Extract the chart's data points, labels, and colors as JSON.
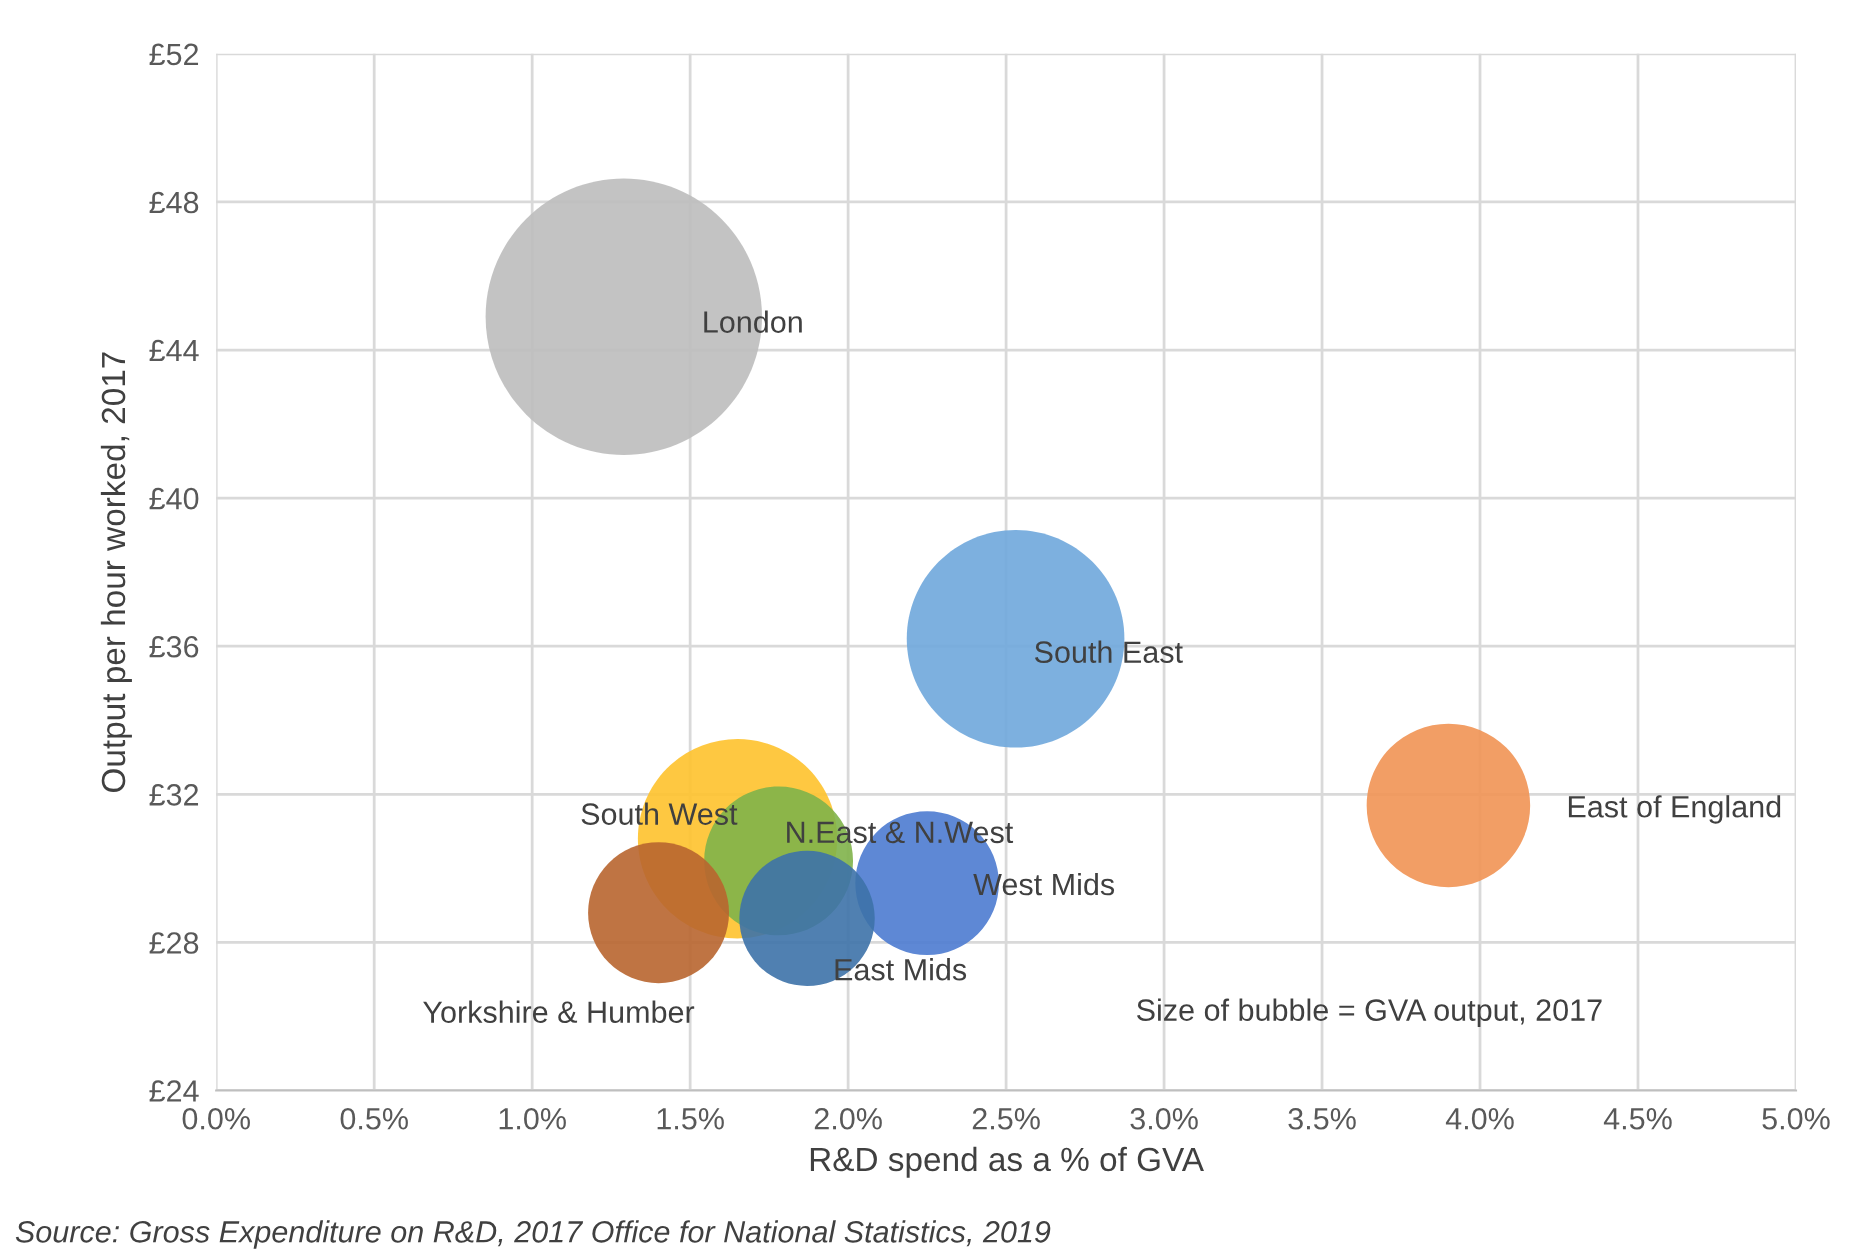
{
  "chart_data": {
    "type": "bubble",
    "xlabel": "R&D spend as a % of GVA",
    "ylabel": "Output per hour worked, 2017",
    "annotations": [
      "Size of bubble = GVA output, 2017",
      "Source: Gross Expenditure on R&D, 2017 Office for National Statistics, 2019"
    ],
    "xlim": [
      0,
      5
    ],
    "xticks": [
      {
        "value": 0,
        "label": "0.0%"
      },
      {
        "value": 0.5,
        "label": "0.5%"
      },
      {
        "value": 1,
        "label": "1.0%"
      },
      {
        "value": 1.5,
        "label": "1.5%"
      },
      {
        "value": 2,
        "label": "2.0%"
      },
      {
        "value": 2.5,
        "label": "2.5%"
      },
      {
        "value": 3,
        "label": "3.0%"
      },
      {
        "value": 3.5,
        "label": "3.5%"
      },
      {
        "value": 4,
        "label": "4.0%"
      },
      {
        "value": 4.5,
        "label": "4.5%"
      },
      {
        "value": 5,
        "label": "5.0%"
      }
    ],
    "ylim": [
      24,
      52
    ],
    "yticks": [
      {
        "value": 24,
        "label": "£24"
      },
      {
        "value": 28,
        "label": "£28"
      },
      {
        "value": 32,
        "label": "£32"
      },
      {
        "value": 36,
        "label": "£36"
      },
      {
        "value": 40,
        "label": "£40"
      },
      {
        "value": 44,
        "label": "£44"
      },
      {
        "value": 48,
        "label": "£48"
      },
      {
        "value": 52,
        "label": "£52"
      }
    ],
    "grid": true,
    "series": [
      {
        "name": "London",
        "color": "#bdbdbd",
        "x": [
          1.29
        ],
        "values": [
          44.9
        ],
        "sizes": [
          1
        ]
      },
      {
        "name": "South East",
        "color": "#6fa7dc",
        "x": [
          2.53
        ],
        "values": [
          36.2
        ],
        "sizes": [
          0.62
        ]
      },
      {
        "name": "East of England",
        "color": "#f19454",
        "x": [
          3.9
        ],
        "values": [
          31.7
        ],
        "sizes": [
          0.35
        ]
      },
      {
        "name": "South West",
        "color": "#fec22c",
        "x": [
          1.65
        ],
        "values": [
          30.8
        ],
        "sizes": [
          0.52
        ]
      },
      {
        "name": "N.East & N.West",
        "color": "#80b24a",
        "x": [
          1.78
        ],
        "values": [
          30.2
        ],
        "sizes": [
          0.29
        ]
      },
      {
        "name": "Yorkshire & Humber",
        "color": "#b8652f",
        "x": [
          1.4
        ],
        "values": [
          28.8
        ],
        "sizes": [
          0.26
        ]
      },
      {
        "name": "West Mids",
        "color": "#4c7bd0",
        "x": [
          2.25
        ],
        "values": [
          29.6
        ],
        "sizes": [
          0.27
        ]
      },
      {
        "name": "East Mids",
        "color": "#3d72a8",
        "x": [
          1.87
        ],
        "values": [
          28.65
        ],
        "sizes": [
          0.24
        ]
      }
    ]
  }
}
